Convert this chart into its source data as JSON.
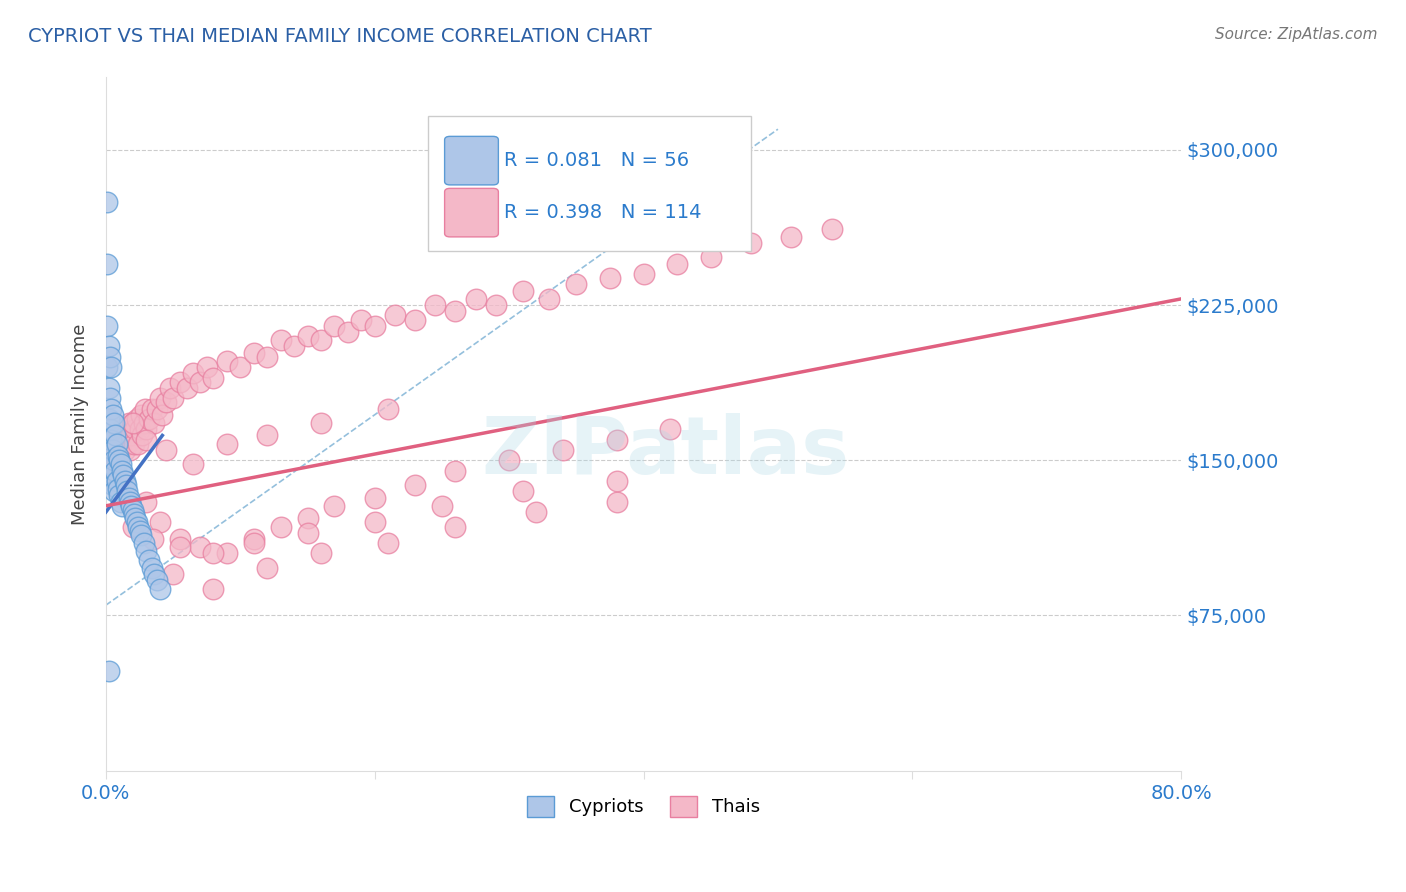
{
  "title": "CYPRIOT VS THAI MEDIAN FAMILY INCOME CORRELATION CHART",
  "source_text": "Source: ZipAtlas.com",
  "ylabel": "Median Family Income",
  "xlim": [
    0.0,
    0.8
  ],
  "ylim": [
    0,
    335000
  ],
  "yticks": [
    75000,
    150000,
    225000,
    300000
  ],
  "ytick_labels": [
    "$75,000",
    "$150,000",
    "$225,000",
    "$300,000"
  ],
  "xticks": [
    0.0,
    0.2,
    0.4,
    0.6,
    0.8
  ],
  "xtick_labels": [
    "0.0%",
    "",
    "",
    "",
    "80.0%"
  ],
  "cypriot_color": "#aec6e8",
  "thai_color": "#f4b8c8",
  "cypriot_edge": "#5b9bd5",
  "thai_edge": "#e87fa0",
  "trend_blue": "#4472c4",
  "trend_pink": "#e06080",
  "diag_color": "#7ab0d4",
  "legend_R1": "R = 0.081",
  "legend_N1": "N = 56",
  "legend_R2": "R = 0.398",
  "legend_N2": "N = 114",
  "label1": "Cypriots",
  "label2": "Thais",
  "watermark": "ZIPatlas",
  "title_color": "#2b5fa5",
  "axis_label_color": "#444444",
  "tick_label_color": "#2b7bcc",
  "background_color": "#ffffff",
  "cypriot_points_x": [
    0.001,
    0.001,
    0.001,
    0.001,
    0.002,
    0.002,
    0.002,
    0.002,
    0.003,
    0.003,
    0.003,
    0.003,
    0.004,
    0.004,
    0.004,
    0.004,
    0.005,
    0.005,
    0.005,
    0.006,
    0.006,
    0.006,
    0.007,
    0.007,
    0.008,
    0.008,
    0.009,
    0.009,
    0.01,
    0.01,
    0.011,
    0.011,
    0.012,
    0.012,
    0.013,
    0.014,
    0.015,
    0.016,
    0.017,
    0.018,
    0.019,
    0.02,
    0.021,
    0.022,
    0.023,
    0.024,
    0.025,
    0.026,
    0.028,
    0.03,
    0.032,
    0.034,
    0.036,
    0.038,
    0.04,
    0.002
  ],
  "cypriot_points_y": [
    275000,
    245000,
    215000,
    195000,
    205000,
    185000,
    170000,
    155000,
    200000,
    180000,
    165000,
    148000,
    195000,
    175000,
    160000,
    142000,
    172000,
    155000,
    138000,
    168000,
    150000,
    135000,
    162000,
    145000,
    158000,
    140000,
    152000,
    136000,
    150000,
    133000,
    148000,
    130000,
    145000,
    128000,
    143000,
    140000,
    138000,
    135000,
    132000,
    130000,
    128000,
    126000,
    124000,
    122000,
    120000,
    118000,
    116000,
    114000,
    110000,
    106000,
    102000,
    98000,
    95000,
    92000,
    88000,
    48000
  ],
  "thai_points_x": [
    0.002,
    0.003,
    0.004,
    0.005,
    0.006,
    0.007,
    0.008,
    0.009,
    0.01,
    0.011,
    0.012,
    0.013,
    0.014,
    0.015,
    0.016,
    0.017,
    0.018,
    0.019,
    0.02,
    0.021,
    0.022,
    0.023,
    0.024,
    0.025,
    0.026,
    0.027,
    0.028,
    0.029,
    0.03,
    0.032,
    0.034,
    0.036,
    0.038,
    0.04,
    0.042,
    0.045,
    0.048,
    0.05,
    0.055,
    0.06,
    0.065,
    0.07,
    0.075,
    0.08,
    0.09,
    0.1,
    0.11,
    0.12,
    0.13,
    0.14,
    0.15,
    0.16,
    0.17,
    0.18,
    0.19,
    0.2,
    0.215,
    0.23,
    0.245,
    0.26,
    0.275,
    0.29,
    0.31,
    0.33,
    0.35,
    0.375,
    0.4,
    0.425,
    0.45,
    0.48,
    0.51,
    0.54,
    0.03,
    0.04,
    0.055,
    0.07,
    0.09,
    0.11,
    0.13,
    0.15,
    0.17,
    0.2,
    0.23,
    0.26,
    0.3,
    0.34,
    0.38,
    0.42,
    0.05,
    0.08,
    0.12,
    0.16,
    0.21,
    0.26,
    0.32,
    0.38,
    0.02,
    0.035,
    0.055,
    0.08,
    0.11,
    0.15,
    0.2,
    0.25,
    0.31,
    0.38,
    0.02,
    0.03,
    0.045,
    0.065,
    0.09,
    0.12,
    0.16,
    0.21
  ],
  "thai_points_y": [
    145000,
    148000,
    155000,
    150000,
    160000,
    155000,
    148000,
    158000,
    162000,
    155000,
    165000,
    160000,
    155000,
    162000,
    158000,
    168000,
    155000,
    162000,
    168000,
    158000,
    165000,
    170000,
    158000,
    165000,
    172000,
    162000,
    168000,
    175000,
    165000,
    170000,
    175000,
    168000,
    175000,
    180000,
    172000,
    178000,
    185000,
    180000,
    188000,
    185000,
    192000,
    188000,
    195000,
    190000,
    198000,
    195000,
    202000,
    200000,
    208000,
    205000,
    210000,
    208000,
    215000,
    212000,
    218000,
    215000,
    220000,
    218000,
    225000,
    222000,
    228000,
    225000,
    232000,
    228000,
    235000,
    238000,
    240000,
    245000,
    248000,
    255000,
    258000,
    262000,
    130000,
    120000,
    112000,
    108000,
    105000,
    112000,
    118000,
    122000,
    128000,
    132000,
    138000,
    145000,
    150000,
    155000,
    160000,
    165000,
    95000,
    88000,
    98000,
    105000,
    110000,
    118000,
    125000,
    130000,
    118000,
    112000,
    108000,
    105000,
    110000,
    115000,
    120000,
    128000,
    135000,
    140000,
    168000,
    160000,
    155000,
    148000,
    158000,
    162000,
    168000,
    175000
  ]
}
